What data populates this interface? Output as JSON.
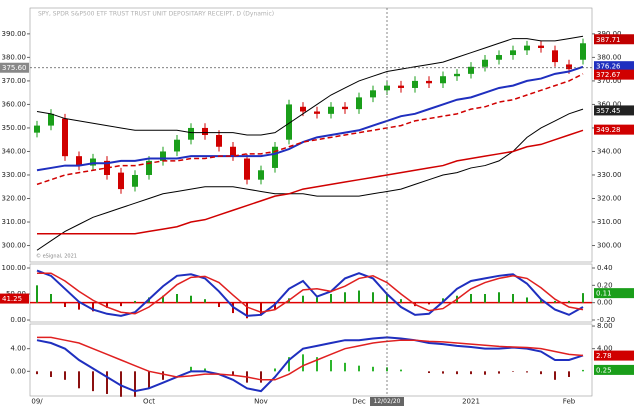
{
  "chart_data": [
    {
      "type": "candlestick",
      "title": "SPY, SPDR S&P500 ETF TRUST TRUST UNIT DEPOSITARY RECEIPT, D (Dynamic)",
      "watermark": "© eSignal, 2021",
      "ylim": [
        293,
        401
      ],
      "yticks": [
        {
          "value": 390,
          "label": "390.00"
        },
        {
          "value": 380,
          "label": "380.00"
        },
        {
          "value": 370,
          "label": "370.00"
        },
        {
          "value": 360,
          "label": "360.00"
        },
        {
          "value": 350,
          "label": "350.00"
        },
        {
          "value": 340,
          "label": "340.00"
        },
        {
          "value": 330,
          "label": "330.00"
        },
        {
          "value": 320,
          "label": "320.00"
        },
        {
          "value": 310,
          "label": "310.00"
        },
        {
          "value": 300,
          "label": "300.00"
        }
      ],
      "mirror_ticks": true,
      "up_color": "#1a9e1a",
      "down_color": "#d00000",
      "open": [
        348,
        351,
        354,
        338,
        334,
        336,
        331,
        325,
        330,
        336,
        340,
        345,
        350,
        347,
        342,
        337,
        328,
        333,
        345,
        359,
        357,
        356,
        359,
        358,
        363,
        366,
        368,
        367,
        370,
        369,
        372,
        373,
        376,
        379,
        381,
        383,
        385,
        383,
        377,
        379
      ],
      "high": [
        353,
        358,
        356,
        340,
        339,
        338,
        333,
        332,
        338,
        342,
        347,
        352,
        352,
        349,
        344,
        339,
        334,
        344,
        362,
        361,
        359,
        361,
        361,
        365,
        368,
        370,
        370,
        372,
        372,
        374,
        375,
        378,
        381,
        383,
        385,
        387,
        387,
        385,
        379,
        388
      ],
      "low": [
        346,
        349,
        336,
        332,
        332,
        328,
        322,
        323,
        328,
        334,
        338,
        343,
        345,
        340,
        336,
        326,
        326,
        331,
        343,
        355,
        354,
        354,
        356,
        356,
        361,
        364,
        365,
        365,
        367,
        367,
        370,
        371,
        374,
        377,
        379,
        381,
        382,
        376,
        373,
        377
      ],
      "close": [
        351,
        356,
        338,
        334,
        337,
        330,
        324,
        330,
        336,
        340,
        345,
        350,
        347,
        342,
        338,
        328,
        332,
        342,
        360,
        357,
        356,
        359,
        358,
        363,
        366,
        368,
        367,
        370,
        369,
        372,
        373,
        376,
        379,
        381,
        383,
        385,
        384,
        378,
        375,
        386
      ],
      "series": [
        {
          "type": "line",
          "color": "#000000",
          "width": 1,
          "values": [
            357,
            356,
            354,
            353,
            352,
            351,
            350,
            349,
            349,
            349,
            349,
            348,
            348,
            348,
            348,
            347,
            347,
            348,
            352,
            356,
            360,
            364,
            367,
            370,
            372,
            374,
            375,
            376,
            377,
            378,
            380,
            382,
            384,
            386,
            388,
            388,
            387,
            387,
            388,
            389
          ]
        },
        {
          "type": "line",
          "color": "#000000",
          "width": 1,
          "values": [
            298,
            302,
            306,
            309,
            312,
            314,
            316,
            318,
            320,
            322,
            323,
            324,
            325,
            325,
            325,
            324,
            323,
            322,
            322,
            322,
            321,
            321,
            321,
            321,
            322,
            323,
            324,
            326,
            328,
            330,
            331,
            333,
            334,
            336,
            340,
            346,
            350,
            353,
            356,
            358
          ]
        },
        {
          "type": "line",
          "color": "#1f2fbf",
          "width": 2,
          "values": [
            332,
            333,
            334,
            334,
            335,
            335,
            336,
            336,
            337,
            337,
            337,
            338,
            338,
            338,
            338,
            338,
            338,
            339,
            341,
            344,
            346,
            347,
            348,
            349,
            351,
            353,
            355,
            356,
            358,
            360,
            362,
            363,
            365,
            367,
            368,
            370,
            371,
            373,
            374,
            376
          ]
        },
        {
          "type": "line",
          "color": "#d00000",
          "width": 1.5,
          "dashed": true,
          "values": [
            326,
            328,
            330,
            331,
            332,
            333,
            334,
            334,
            335,
            336,
            336,
            337,
            337,
            338,
            338,
            339,
            339,
            340,
            342,
            344,
            345,
            346,
            347,
            348,
            349,
            350,
            351,
            353,
            354,
            355,
            356,
            358,
            359,
            361,
            362,
            364,
            366,
            368,
            370,
            373
          ]
        },
        {
          "type": "line",
          "color": "#d00000",
          "width": 1.5,
          "values": [
            305,
            305,
            305,
            305,
            305,
            305,
            305,
            305,
            306,
            307,
            308,
            310,
            311,
            313,
            315,
            317,
            319,
            321,
            322,
            324,
            325,
            326,
            327,
            328,
            329,
            330,
            331,
            332,
            333,
            334,
            336,
            337,
            338,
            339,
            340,
            342,
            343,
            345,
            347,
            349
          ]
        }
      ],
      "annotations": [
        {
          "value": 387.71,
          "label": "387.71",
          "color": "#c00000",
          "side": "right"
        },
        {
          "value": 376.26,
          "label": "376.26",
          "color": "#1f2fbf",
          "side": "right"
        },
        {
          "value": 372.67,
          "label": "372.67",
          "color": "#d00000",
          "side": "right"
        },
        {
          "value": 357.45,
          "label": "357.45",
          "color": "#222222",
          "side": "right"
        },
        {
          "value": 349.28,
          "label": "349.28",
          "color": "#d00000",
          "side": "right"
        }
      ],
      "crosshair": {
        "x": "12/02/20",
        "y": {
          "value": 375.6,
          "label": "375.60"
        }
      }
    },
    {
      "type": "line",
      "ylim": [
        -3.8,
        107.7
      ],
      "yticks": [
        {
          "value": 100,
          "label": "100.00"
        },
        {
          "value": 50,
          "label": "50.00"
        },
        {
          "value": 0,
          "label": "0.00"
        }
      ],
      "y2lim": [
        -0.223,
        0.446
      ],
      "y2ticks": [
        {
          "value": 0.4,
          "label": "0.40"
        },
        {
          "value": 0.2,
          "label": "0.20"
        },
        {
          "value": 0,
          "label": "0.00"
        },
        {
          "value": -0.2,
          "label": "-0.20"
        }
      ],
      "baseline": {
        "value": 0,
        "axis": "y2",
        "color": "#e00000"
      },
      "series": [
        {
          "type": "bar",
          "axis": "y2",
          "color": "#1a9e1a",
          "negative_color": "#c00000",
          "values": [
            0.2,
            0.1,
            -0.05,
            -0.08,
            -0.1,
            -0.06,
            -0.04,
            0.02,
            0.06,
            0.08,
            0.1,
            0.08,
            0.04,
            -0.05,
            -0.12,
            -0.18,
            -0.15,
            -0.08,
            0.05,
            0.08,
            0.06,
            0.1,
            0.12,
            0.14,
            0.12,
            0.1,
            0.04,
            -0.04,
            -0.02,
            0.05,
            0.08,
            0.1,
            0.1,
            0.12,
            0.1,
            0.06,
            0.03,
            0.02,
            0.02,
            0.11
          ]
        },
        {
          "type": "line",
          "color": "#1f2fbf",
          "width": 2,
          "values": [
            95,
            85,
            60,
            35,
            20,
            12,
            8,
            15,
            40,
            65,
            85,
            88,
            80,
            55,
            25,
            8,
            10,
            30,
            60,
            75,
            45,
            55,
            80,
            90,
            80,
            50,
            25,
            10,
            12,
            35,
            60,
            75,
            80,
            85,
            88,
            70,
            40,
            20,
            10,
            25
          ]
        },
        {
          "type": "line",
          "color": "#e02020",
          "width": 1.5,
          "values": [
            90,
            90,
            75,
            55,
            38,
            25,
            15,
            12,
            25,
            45,
            68,
            82,
            84,
            72,
            48,
            25,
            15,
            20,
            38,
            58,
            60,
            55,
            65,
            80,
            85,
            72,
            50,
            30,
            18,
            22,
            40,
            60,
            72,
            80,
            85,
            80,
            62,
            40,
            25,
            20
          ]
        }
      ],
      "annotations": [
        {
          "value": 41.25,
          "label": "41.25",
          "color": "#d00000",
          "side": "left"
        },
        {
          "value": 0.11,
          "label": "0.11",
          "color": "#1a9e1a",
          "side": "right",
          "axis": "y2"
        }
      ]
    },
    {
      "type": "line",
      "ylim": [
        -4.36,
        8.36
      ],
      "yticks": [
        {
          "value": 4,
          "label": "4.00"
        },
        {
          "value": 0,
          "label": "0.00"
        }
      ],
      "y2ticks": [
        {
          "value": 8,
          "label": "8.00"
        },
        {
          "value": 4,
          "label": "4.00"
        }
      ],
      "categories": [
        "09/",
        null,
        null,
        null,
        null,
        null,
        null,
        null,
        "Oct",
        null,
        null,
        null,
        null,
        null,
        null,
        null,
        "Nov",
        null,
        null,
        null,
        null,
        null,
        null,
        "Dec",
        null,
        "12/02/20",
        null,
        null,
        null,
        null,
        null,
        "2021",
        null,
        null,
        null,
        null,
        null,
        null,
        "Feb",
        null
      ],
      "series": [
        {
          "type": "bar",
          "color": "#2db52d",
          "negative_color": "#8b1010",
          "values": [
            -0.5,
            -1,
            -1.5,
            -3,
            -3.5,
            -4,
            -4.5,
            -4.5,
            -3,
            -1.5,
            0,
            0.8,
            0.5,
            0,
            -0.8,
            -2,
            -2,
            0.5,
            2.5,
            3,
            2.5,
            2,
            1.5,
            1,
            0.8,
            0.7,
            0.3,
            0,
            -0.3,
            -0.4,
            -0.5,
            -0.5,
            -0.6,
            -0.4,
            -0.1,
            -0.2,
            -0.5,
            -1.5,
            -1,
            0.25
          ]
        },
        {
          "type": "line",
          "color": "#1f2fbf",
          "width": 2,
          "values": [
            5.5,
            5,
            4,
            2,
            0.5,
            -1,
            -2.5,
            -3.5,
            -3,
            -2,
            -1,
            0,
            0,
            -0.5,
            -1.5,
            -3,
            -3.5,
            -1,
            2,
            4,
            4.5,
            5,
            5.5,
            5.5,
            5.8,
            6,
            5.8,
            5.5,
            5,
            4.8,
            4.5,
            4.3,
            4,
            4,
            4.2,
            4,
            3.5,
            2,
            2,
            2.8
          ]
        },
        {
          "type": "line",
          "color": "#e02020",
          "width": 1.5,
          "values": [
            6,
            6,
            5.5,
            5,
            4,
            3,
            2,
            1,
            0,
            -0.5,
            -1,
            -0.8,
            -0.5,
            -0.5,
            -0.7,
            -1,
            -1.5,
            -1.5,
            -0.5,
            1,
            2,
            3,
            4,
            4.5,
            5,
            5.3,
            5.5,
            5.5,
            5.3,
            5.2,
            5,
            4.8,
            4.6,
            4.4,
            4.3,
            4.2,
            4,
            3.5,
            3,
            2.8
          ]
        }
      ],
      "annotations": [
        {
          "value": 2.78,
          "label": "2.78",
          "color": "#d00000",
          "side": "right"
        },
        {
          "value": 0.25,
          "label": "0.25",
          "color": "#1a9e1a",
          "side": "right"
        }
      ]
    }
  ]
}
